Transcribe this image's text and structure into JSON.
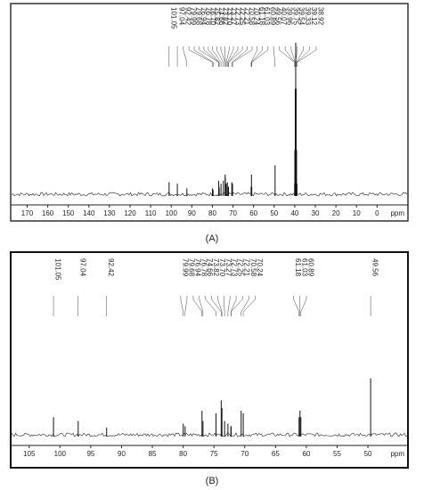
{
  "chart_data": [
    {
      "type": "spectrum",
      "xlabel": "ppm",
      "caption": "(A)",
      "xlim": [
        178,
        -15
      ],
      "ylim": [
        0,
        100
      ],
      "xticks": [
        170,
        160,
        150,
        140,
        130,
        120,
        110,
        100,
        90,
        80,
        70,
        60,
        50,
        40,
        30,
        20,
        10,
        0
      ],
      "peaks": [
        101.05,
        97.04,
        92.42,
        79.99,
        79.68,
        76.94,
        76.78,
        {
          "value": 76.7,
          "label": "76.70"
        },
        75.82,
        74.66,
        73.82,
        {
          "value": 73.7,
          "label": "73.70"
        },
        73.27,
        72.73,
        72.25,
        72.21,
        70.58,
        70.24,
        61.18,
        61.03,
        60.89,
        49.56,
        40.07,
        39.96,
        39.75,
        39.54,
        39.33,
        39.12,
        38.92
      ],
      "intensity": [
        9,
        8,
        5,
        5,
        4,
        10,
        6,
        5,
        8,
        10,
        14,
        12,
        8,
        9,
        6,
        6,
        9,
        8,
        6,
        14,
        6,
        20,
        8,
        30,
        70,
        100,
        70,
        30,
        8
      ]
    },
    {
      "type": "spectrum",
      "xlabel": "ppm",
      "caption": "(B)",
      "xlim": [
        108,
        43.5
      ],
      "ylim": [
        0,
        100
      ],
      "xticks": [
        105,
        100,
        95,
        90,
        85,
        80,
        75,
        70,
        65,
        60,
        55,
        50
      ],
      "peaks": [
        101.05,
        97.04,
        92.42,
        79.99,
        79.68,
        76.94,
        76.78,
        74.66,
        73.82,
        {
          "value": 73.7,
          "label": "73.70"
        },
        73.27,
        72.73,
        72.25,
        72.21,
        70.58,
        70.24,
        61.18,
        61.03,
        60.89,
        49.56
      ],
      "intensity": [
        15,
        12,
        7,
        10,
        8,
        20,
        12,
        18,
        28,
        22,
        12,
        10,
        8,
        8,
        20,
        18,
        15,
        20,
        15,
        45
      ]
    }
  ]
}
